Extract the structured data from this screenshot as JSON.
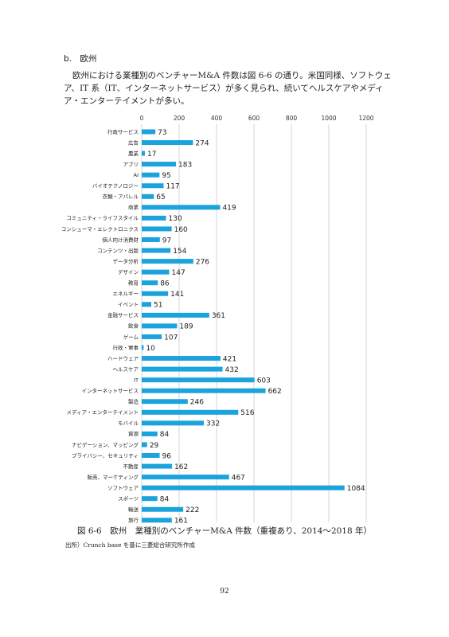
{
  "section": {
    "heading": "b.　欧州"
  },
  "body_text": "欧州における業種別のベンチャーM&A 件数は図 6-6 の通り。米国同様、ソフトウェア、IT 系（IT、インターネットサービス）が多く見られ、続いてヘルスケアやメディア・エンターテイメントが多い。",
  "chart_data": {
    "type": "bar",
    "orientation": "horizontal",
    "xlim": [
      0,
      1200
    ],
    "x_ticks": [
      "0",
      "200",
      "400",
      "600",
      "800",
      "1000",
      "1200"
    ],
    "x_tick_values": [
      0,
      200,
      400,
      600,
      800,
      1000,
      1200
    ],
    "grid": true,
    "bar_color": "#1aa3dd",
    "categories": [
      "行政サービス",
      "広告",
      "農業",
      "アプリ",
      "AI",
      "バイオテクノロジー",
      "衣類・アパレル",
      "商業",
      "コミュニティ・ライフスタイル",
      "コンシューマ・エレクトロニクス",
      "個人向け消費財",
      "コンテンツ・出版",
      "データ分析",
      "デザイン",
      "教育",
      "エネルギー",
      "イベント",
      "金融サービス",
      "飲食",
      "ゲーム",
      "行政・軍事",
      "ハードウェア",
      "ヘルスケア",
      "IT",
      "インターネットサービス",
      "製造",
      "メディア・エンターテイメント",
      "モバイル",
      "資源",
      "ナビゲーション、マッピング",
      "プライバシー、セキュリティ",
      "不動産",
      "販売、マーケティング",
      "ソフトウェア",
      "スポーツ",
      "輸送",
      "旅行"
    ],
    "values": [
      73,
      274,
      17,
      183,
      95,
      117,
      65,
      419,
      130,
      160,
      97,
      154,
      276,
      147,
      86,
      141,
      51,
      361,
      189,
      107,
      10,
      421,
      432,
      603,
      662,
      246,
      516,
      332,
      84,
      29,
      96,
      162,
      467,
      1084,
      84,
      222,
      161
    ],
    "value_labels": [
      "73",
      "274",
      "17",
      "183",
      "95",
      "117",
      "65",
      "419",
      "130",
      "160",
      "97",
      "154",
      "276",
      "147",
      "86",
      "141",
      "51",
      "361",
      "189",
      "107",
      "10",
      "421",
      "432",
      "603",
      "662",
      "246",
      "516",
      "332",
      "84",
      "29",
      "96",
      "162",
      "467",
      "1084",
      "84",
      "222",
      "161"
    ]
  },
  "figure": {
    "caption": "図 6-6　欧州　業種別のベンチャーM&A 件数（重複あり、2014〜2018 年）",
    "source": "出所）Crunch base を基に三菱総合研究所作成"
  },
  "page_number": "92"
}
